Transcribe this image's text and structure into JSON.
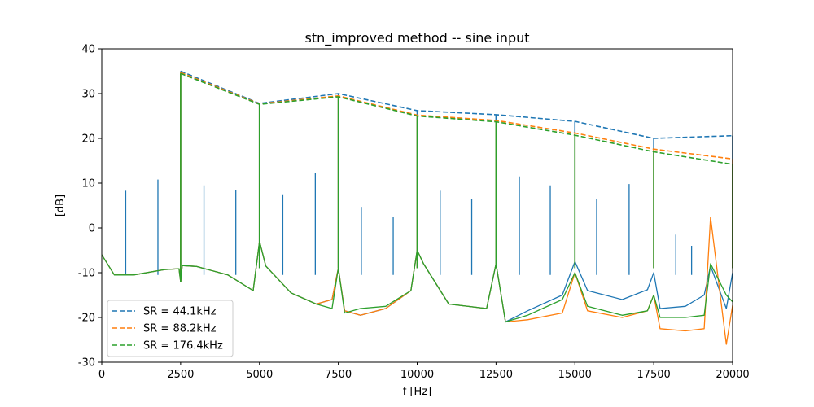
{
  "chart_data": {
    "type": "line",
    "title": "stn_improved method -- sine input",
    "xlabel": "f [Hz]",
    "ylabel": "[dB]",
    "xlim": [
      0,
      20000
    ],
    "ylim": [
      -30,
      40
    ],
    "xticks": [
      0,
      2500,
      5000,
      7500,
      10000,
      12500,
      15000,
      17500,
      20000
    ],
    "yticks": [
      -30,
      -20,
      -10,
      0,
      10,
      20,
      30,
      40
    ],
    "grid": false,
    "legend_position": "lower-left",
    "colors": {
      "c0": "#1f77b4",
      "c1": "#ff7f0e",
      "c2": "#2ca02c"
    },
    "series": [
      {
        "name": "SR = 44.1kHz",
        "color": "#1f77b4",
        "style": "dashed",
        "x": [
          2500,
          5000,
          7500,
          10000,
          12500,
          15000,
          17500,
          20000
        ],
        "y": [
          35,
          27.8,
          30,
          26.2,
          25.3,
          23.8,
          20,
          20.6
        ]
      },
      {
        "name": "SR = 88.2kHz",
        "color": "#ff7f0e",
        "style": "dashed",
        "x": [
          2500,
          5000,
          7500,
          10000,
          12500,
          15000,
          17500,
          20000
        ],
        "y": [
          34.7,
          27.7,
          29.5,
          25.2,
          24,
          21.2,
          17.6,
          15.4
        ]
      },
      {
        "name": "SR = 176.4kHz",
        "color": "#2ca02c",
        "style": "dashed",
        "x": [
          2500,
          5000,
          7500,
          10000,
          12500,
          15000,
          17500,
          20000
        ],
        "y": [
          34.5,
          27.6,
          29.3,
          25,
          23.7,
          20.7,
          17,
          14.2
        ]
      }
    ],
    "spectra": [
      {
        "name": "SR = 44.1kHz spectrum",
        "color": "#1f77b4",
        "style": "solid",
        "x": [
          0,
          400,
          1000,
          2000,
          2450,
          2500,
          2550,
          3000,
          4000,
          4800,
          5000,
          5200,
          6000,
          6800,
          7300,
          7500,
          7700,
          8200,
          9000,
          9800,
          10000,
          10200,
          11000,
          12200,
          12500,
          12800,
          13500,
          14600,
          15000,
          15400,
          16500,
          17300,
          17500,
          17700,
          18500,
          19100,
          19300,
          19800,
          20000
        ],
        "y": [
          -6,
          -10.5,
          -10.5,
          -9.3,
          -9.1,
          -12,
          -8.4,
          -8.6,
          -10.5,
          -14,
          -3,
          -8.5,
          -14.5,
          -17,
          -16,
          -9,
          -18.5,
          -19.5,
          -18,
          -14,
          -5,
          -8,
          -17,
          -18,
          -8,
          -21,
          -18.5,
          -15,
          -7.5,
          -14,
          -16,
          -13.8,
          -10,
          -18,
          -17.5,
          -15,
          -8.5,
          -18,
          -10
        ],
        "spikes": [
          [
            760,
            8.3
          ],
          [
            1780,
            10.8
          ],
          [
            3240,
            9.5
          ],
          [
            4250,
            8.5
          ],
          [
            5740,
            7.5
          ],
          [
            6770,
            12.2
          ],
          [
            8230,
            4.7
          ],
          [
            9240,
            2.5
          ],
          [
            10730,
            8.3
          ],
          [
            11730,
            6.5
          ],
          [
            13240,
            11.5
          ],
          [
            14220,
            9.5
          ],
          [
            15690,
            6.5
          ],
          [
            16720,
            9.8
          ],
          [
            18200,
            -1.5
          ],
          [
            18700,
            -4
          ]
        ]
      },
      {
        "name": "SR = 88.2kHz spectrum",
        "color": "#ff7f0e",
        "style": "solid",
        "x": [
          0,
          400,
          1000,
          2000,
          2450,
          2500,
          2550,
          3000,
          4000,
          4800,
          5000,
          5200,
          6000,
          6800,
          7300,
          7500,
          7700,
          8200,
          9000,
          9800,
          10000,
          10200,
          11000,
          12200,
          12500,
          12800,
          13500,
          14600,
          15000,
          15400,
          16500,
          17300,
          17500,
          17700,
          18500,
          19100,
          19300,
          19800,
          20000
        ],
        "y": [
          -6,
          -10.5,
          -10.5,
          -9.3,
          -9.1,
          -12,
          -8.4,
          -8.6,
          -10.5,
          -14,
          -3,
          -8.5,
          -14.5,
          -17,
          -16,
          -9,
          -18.5,
          -19.5,
          -18,
          -14,
          -5,
          -8,
          -17,
          -18,
          -8,
          -21,
          -20.5,
          -19,
          -10,
          -18.5,
          -20,
          -18.5,
          -15,
          -22.5,
          -23,
          -22.5,
          2.4,
          -26,
          -17.3
        ],
        "spikes": []
      },
      {
        "name": "SR = 176.4kHz spectrum",
        "color": "#2ca02c",
        "style": "solid",
        "x": [
          0,
          400,
          1000,
          2000,
          2450,
          2500,
          2550,
          3000,
          4000,
          4800,
          5000,
          5200,
          6000,
          6800,
          7300,
          7500,
          7700,
          8200,
          9000,
          9800,
          10000,
          10200,
          11000,
          12200,
          12500,
          12800,
          13500,
          14600,
          15000,
          15400,
          16500,
          17300,
          17500,
          17700,
          18500,
          19100,
          19300,
          19800,
          20000
        ],
        "y": [
          -6,
          -10.5,
          -10.5,
          -9.3,
          -9.1,
          -12,
          -8.4,
          -8.6,
          -10.5,
          -14,
          -3,
          -8.5,
          -14.5,
          -17,
          -18,
          -9,
          -19,
          -18,
          -17.5,
          -14,
          -5,
          -8,
          -17,
          -18,
          -8,
          -21,
          -19.5,
          -16,
          -10,
          -17.5,
          -19.5,
          -18.5,
          -15,
          -20,
          -20,
          -19.5,
          -8,
          -15,
          -16.5
        ],
        "spikes": []
      }
    ]
  }
}
